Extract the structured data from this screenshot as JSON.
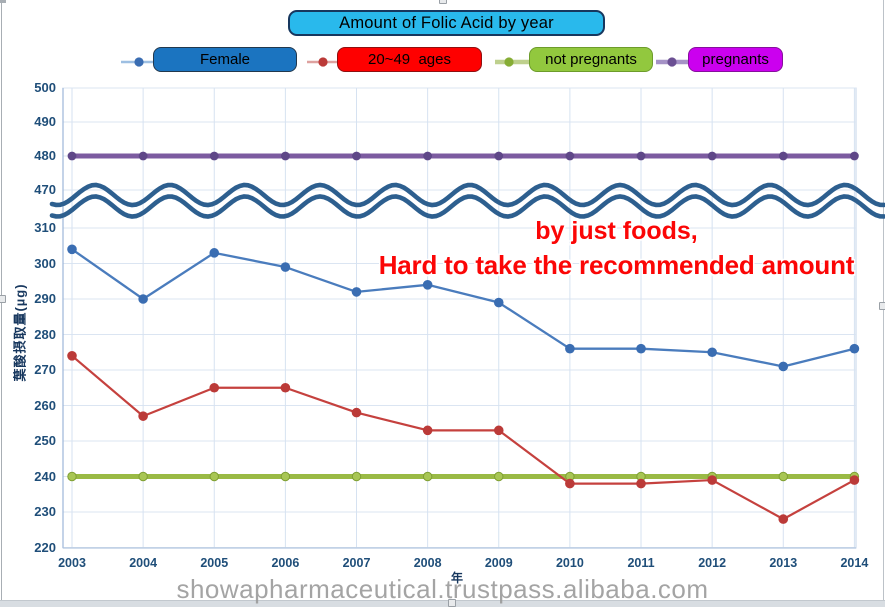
{
  "title": "Amount of Folic Acid by year",
  "legend": {
    "items": [
      {
        "label": "Female",
        "box_color": "#1b74c0",
        "box_border": "#22384d",
        "marker_line": "#9dbfe2",
        "marker_dot": "#3a6db2"
      },
      {
        "label": "20~49  ages",
        "box_color": "#fe0000",
        "box_border": "#8f1010",
        "marker_line": "#dea19f",
        "marker_dot": "#bb3a38"
      },
      {
        "label": "not pregnants",
        "box_color": "#92c83e",
        "box_border": "#6d9c2b",
        "marker_line": "#bed08d",
        "marker_dot": "#86ad35"
      },
      {
        "label": "pregnants",
        "box_color": "#cb00ef",
        "box_border": "#86109c",
        "marker_line": "#a592c6",
        "marker_dot": "#6b4f93"
      }
    ]
  },
  "annotation": {
    "line1": "by just foods,",
    "line2": "Hard to take the recommended amount",
    "color": "#fb0606"
  },
  "watermark": "showapharmaceutical.trustpass.alibaba.com",
  "chart_data": {
    "type": "line",
    "title": "Amount of Folic Acid by year",
    "xlabel": "年",
    "ylabel": "葉酸摂取量(µg)",
    "x": [
      2003,
      2004,
      2005,
      2006,
      2007,
      2008,
      2009,
      2010,
      2011,
      2012,
      2013,
      2014
    ],
    "y_axis": {
      "broken": true,
      "lower_range": [
        220,
        310
      ],
      "upper_range": [
        470,
        500
      ],
      "lower_ticks": [
        220,
        230,
        240,
        250,
        260,
        270,
        280,
        290,
        300,
        310
      ],
      "upper_ticks": [
        470,
        480,
        490,
        500
      ]
    },
    "grid": true,
    "legend_position": "top",
    "series": [
      {
        "name": "pregnants",
        "color": "#7c5ba0",
        "marker_color": "#5f4788",
        "line_width": 5,
        "marker_r": 4.4,
        "values": [
          480,
          480,
          480,
          480,
          480,
          480,
          480,
          480,
          480,
          480,
          480,
          480
        ]
      },
      {
        "name": "not pregnants",
        "color": "#9aba45",
        "marker_color": "#a8c654",
        "marker_stroke": "#7f9f33",
        "line_width": 5,
        "marker_r": 4.2,
        "values": [
          240,
          240,
          240,
          240,
          240,
          240,
          240,
          240,
          240,
          240,
          240,
          240
        ]
      },
      {
        "name": "20~49  ages",
        "color": "#c5413e",
        "marker_color": "#bb3a38",
        "line_width": 2.2,
        "marker_r": 4.8,
        "values": [
          274,
          257,
          265,
          265,
          258,
          253,
          253,
          238,
          238,
          239,
          228,
          239
        ]
      },
      {
        "name": "Female",
        "color": "#4a7cbd",
        "marker_color": "#3a6db2",
        "line_width": 2.3,
        "marker_r": 4.8,
        "values": [
          304,
          290,
          303,
          299,
          292,
          294,
          289,
          276,
          276,
          275,
          271,
          276
        ]
      }
    ],
    "axis_break_marks": {
      "style": "double-sine-wave",
      "color": "#2d5f8f"
    }
  }
}
